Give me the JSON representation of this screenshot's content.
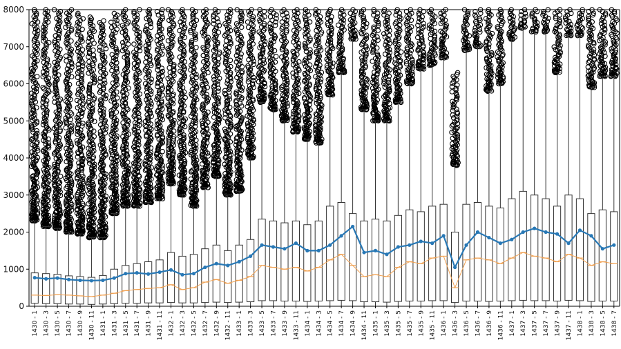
{
  "chart_data": {
    "type": "box",
    "title": "",
    "xlabel": "",
    "ylabel": "",
    "ylim": [
      0,
      8000
    ],
    "grid": false,
    "legend": "none",
    "y_ticks": [
      0,
      1000,
      2000,
      3000,
      4000,
      5000,
      6000,
      7000,
      8000
    ],
    "colors": {
      "box_edge": "#333333",
      "outlier": "#000000",
      "mean_line": "#2878b5",
      "median_line": "#f0a050"
    },
    "categories": [
      "1430 - 1",
      "1430 - 3",
      "1430 - 5",
      "1430 - 7",
      "1430 - 9",
      "1430 - 11",
      "1431 - 1",
      "1431 - 3",
      "1431 - 5",
      "1431 - 7",
      "1431 - 9",
      "1431 - 11",
      "1432 - 1",
      "1432 - 3",
      "1432 - 5",
      "1432 - 7",
      "1432 - 9",
      "1432 - 11",
      "1433 - 1",
      "1433 - 3",
      "1433 - 5",
      "1433 - 7",
      "1433 - 9",
      "1433 - 11",
      "1434 - 1",
      "1434 - 3",
      "1434 - 5",
      "1434 - 7",
      "1434 - 9",
      "1434 - 11",
      "1435 - 1",
      "1435 - 3",
      "1435 - 5",
      "1435 - 7",
      "1435 - 9",
      "1435 - 11",
      "1436 - 1",
      "1436 - 3",
      "1436 - 5",
      "1436 - 7",
      "1436 - 9",
      "1436 - 11",
      "1437 - 1",
      "1437 - 3",
      "1437 - 5",
      "1437 - 7",
      "1437 - 9",
      "1437 - 11",
      "1438 - 1",
      "1438 - 3",
      "1438 - 5",
      "1438 - 7"
    ],
    "series": [
      {
        "name": "",
        "values": [
          {
            "whislo": 0,
            "q1": 80,
            "med": 300,
            "q3": 900,
            "whishi": 2300,
            "outlier_max": 8000
          },
          {
            "whislo": 0,
            "q1": 70,
            "med": 290,
            "q3": 880,
            "whishi": 2150,
            "outlier_max": 8000
          },
          {
            "whislo": 0,
            "q1": 70,
            "med": 310,
            "q3": 860,
            "whishi": 2100,
            "outlier_max": 8000
          },
          {
            "whislo": 0,
            "q1": 60,
            "med": 300,
            "q3": 820,
            "whishi": 2000,
            "outlier_max": 8000
          },
          {
            "whislo": 0,
            "q1": 60,
            "med": 280,
            "q3": 800,
            "whishi": 1950,
            "outlier_max": 7900
          },
          {
            "whislo": 0,
            "q1": 50,
            "med": 260,
            "q3": 780,
            "whishi": 1850,
            "outlier_max": 7800
          },
          {
            "whislo": 0,
            "q1": 60,
            "med": 300,
            "q3": 830,
            "whishi": 1850,
            "outlier_max": 7700
          },
          {
            "whislo": 0,
            "q1": 70,
            "med": 350,
            "q3": 1000,
            "whishi": 2500,
            "outlier_max": 7900
          },
          {
            "whislo": 0,
            "q1": 80,
            "med": 420,
            "q3": 1100,
            "whishi": 2700,
            "outlier_max": 8000
          },
          {
            "whislo": 0,
            "q1": 80,
            "med": 450,
            "q3": 1150,
            "whishi": 2700,
            "outlier_max": 8000
          },
          {
            "whislo": 0,
            "q1": 90,
            "med": 480,
            "q3": 1200,
            "whishi": 2800,
            "outlier_max": 8000
          },
          {
            "whislo": 0,
            "q1": 90,
            "med": 500,
            "q3": 1250,
            "whishi": 2900,
            "outlier_max": 8000
          },
          {
            "whislo": 0,
            "q1": 100,
            "med": 580,
            "q3": 1450,
            "whishi": 3300,
            "outlier_max": 8000
          },
          {
            "whislo": 0,
            "q1": 90,
            "med": 450,
            "q3": 1350,
            "whishi": 3000,
            "outlier_max": 8000
          },
          {
            "whislo": 0,
            "q1": 90,
            "med": 500,
            "q3": 1400,
            "whishi": 2700,
            "outlier_max": 8000
          },
          {
            "whislo": 0,
            "q1": 100,
            "med": 650,
            "q3": 1550,
            "whishi": 3200,
            "outlier_max": 8000
          },
          {
            "whislo": 0,
            "q1": 110,
            "med": 720,
            "q3": 1650,
            "whishi": 3500,
            "outlier_max": 8000
          },
          {
            "whislo": 0,
            "q1": 100,
            "med": 620,
            "q3": 1500,
            "whishi": 3000,
            "outlier_max": 8000
          },
          {
            "whislo": 0,
            "q1": 110,
            "med": 700,
            "q3": 1650,
            "whishi": 3100,
            "outlier_max": 8000
          },
          {
            "whislo": 0,
            "q1": 120,
            "med": 800,
            "q3": 1800,
            "whishi": 4000,
            "outlier_max": 8000
          },
          {
            "whislo": 0,
            "q1": 150,
            "med": 1100,
            "q3": 2350,
            "whishi": 5500,
            "outlier_max": 8000
          },
          {
            "whislo": 0,
            "q1": 150,
            "med": 1050,
            "q3": 2300,
            "whishi": 5300,
            "outlier_max": 8000
          },
          {
            "whislo": 0,
            "q1": 140,
            "med": 1000,
            "q3": 2250,
            "whishi": 5000,
            "outlier_max": 8000
          },
          {
            "whislo": 0,
            "q1": 140,
            "med": 1050,
            "q3": 2300,
            "whishi": 4700,
            "outlier_max": 8000
          },
          {
            "whislo": 0,
            "q1": 130,
            "med": 950,
            "q3": 2200,
            "whishi": 4500,
            "outlier_max": 8000
          },
          {
            "whislo": 0,
            "q1": 140,
            "med": 1050,
            "q3": 2300,
            "whishi": 4400,
            "outlier_max": 8000
          },
          {
            "whislo": 0,
            "q1": 150,
            "med": 1250,
            "q3": 2700,
            "whishi": 5700,
            "outlier_max": 8000
          },
          {
            "whislo": 0,
            "q1": 160,
            "med": 1400,
            "q3": 2800,
            "whishi": 6300,
            "outlier_max": 8000
          },
          {
            "whislo": 0,
            "q1": 150,
            "med": 1100,
            "q3": 2500,
            "whishi": 7200,
            "outlier_max": 8000
          },
          {
            "whislo": 0,
            "q1": 120,
            "med": 800,
            "q3": 2300,
            "whishi": 5300,
            "outlier_max": 8000
          },
          {
            "whislo": 0,
            "q1": 120,
            "med": 850,
            "q3": 2350,
            "whishi": 5000,
            "outlier_max": 8000
          },
          {
            "whislo": 0,
            "q1": 110,
            "med": 800,
            "q3": 2300,
            "whishi": 5000,
            "outlier_max": 8000
          },
          {
            "whislo": 0,
            "q1": 130,
            "med": 1050,
            "q3": 2450,
            "whishi": 5500,
            "outlier_max": 8000
          },
          {
            "whislo": 0,
            "q1": 140,
            "med": 1200,
            "q3": 2600,
            "whishi": 6000,
            "outlier_max": 8000
          },
          {
            "whislo": 0,
            "q1": 140,
            "med": 1150,
            "q3": 2550,
            "whishi": 6400,
            "outlier_max": 8000
          },
          {
            "whislo": 0,
            "q1": 150,
            "med": 1300,
            "q3": 2700,
            "whishi": 6500,
            "outlier_max": 8000
          },
          {
            "whislo": 0,
            "q1": 150,
            "med": 1350,
            "q3": 2750,
            "whishi": 6700,
            "outlier_max": 8000
          },
          {
            "whislo": 0,
            "q1": 100,
            "med": 500,
            "q3": 2000,
            "whishi": 3800,
            "outlier_max": 6300
          },
          {
            "whislo": 0,
            "q1": 140,
            "med": 1250,
            "q3": 2750,
            "whishi": 6900,
            "outlier_max": 8000
          },
          {
            "whislo": 0,
            "q1": 140,
            "med": 1300,
            "q3": 2800,
            "whishi": 7000,
            "outlier_max": 8000
          },
          {
            "whislo": 0,
            "q1": 130,
            "med": 1250,
            "q3": 2700,
            "whishi": 5800,
            "outlier_max": 8000
          },
          {
            "whislo": 0,
            "q1": 140,
            "med": 1150,
            "q3": 2650,
            "whishi": 6000,
            "outlier_max": 8000
          },
          {
            "whislo": 0,
            "q1": 150,
            "med": 1300,
            "q3": 2900,
            "whishi": 7200,
            "outlier_max": 8000
          },
          {
            "whislo": 0,
            "q1": 160,
            "med": 1450,
            "q3": 3100,
            "whishi": 7500,
            "outlier_max": 8000
          },
          {
            "whislo": 0,
            "q1": 150,
            "med": 1350,
            "q3": 3000,
            "whishi": 7400,
            "outlier_max": 8000
          },
          {
            "whislo": 0,
            "q1": 150,
            "med": 1300,
            "q3": 2900,
            "whishi": 7400,
            "outlier_max": 8000
          },
          {
            "whislo": 0,
            "q1": 140,
            "med": 1200,
            "q3": 2700,
            "whishi": 6300,
            "outlier_max": 8000
          },
          {
            "whislo": 0,
            "q1": 160,
            "med": 1400,
            "q3": 3000,
            "whishi": 7300,
            "outlier_max": 8000
          },
          {
            "whislo": 0,
            "q1": 150,
            "med": 1300,
            "q3": 2900,
            "whishi": 7300,
            "outlier_max": 8000
          },
          {
            "whislo": 0,
            "q1": 130,
            "med": 1100,
            "q3": 2500,
            "whishi": 5900,
            "outlier_max": 8000
          },
          {
            "whislo": 0,
            "q1": 140,
            "med": 1200,
            "q3": 2600,
            "whishi": 6200,
            "outlier_max": 8000
          },
          {
            "whislo": 0,
            "q1": 140,
            "med": 1150,
            "q3": 2550,
            "whishi": 6200,
            "outlier_max": 8000
          }
        ]
      }
    ],
    "mean_line": [
      770,
      740,
      760,
      720,
      700,
      690,
      700,
      760,
      880,
      900,
      870,
      920,
      980,
      850,
      880,
      1050,
      1150,
      1100,
      1200,
      1350,
      1650,
      1600,
      1550,
      1700,
      1500,
      1500,
      1650,
      1900,
      2150,
      1450,
      1500,
      1400,
      1600,
      1650,
      1750,
      1700,
      1900,
      1050,
      1650,
      2000,
      1850,
      1700,
      1800,
      2000,
      2100,
      2000,
      1950,
      1700,
      2050,
      1900,
      1550,
      1650
    ],
    "median_line": [
      300,
      290,
      310,
      300,
      280,
      260,
      300,
      350,
      420,
      450,
      480,
      500,
      580,
      450,
      500,
      650,
      720,
      620,
      700,
      800,
      1100,
      1050,
      1000,
      1050,
      950,
      1050,
      1250,
      1400,
      1100,
      800,
      850,
      800,
      1050,
      1200,
      1150,
      1300,
      1350,
      500,
      1250,
      1300,
      1250,
      1150,
      1300,
      1450,
      1350,
      1300,
      1200,
      1400,
      1300,
      1100,
      1200,
      1150
    ]
  }
}
